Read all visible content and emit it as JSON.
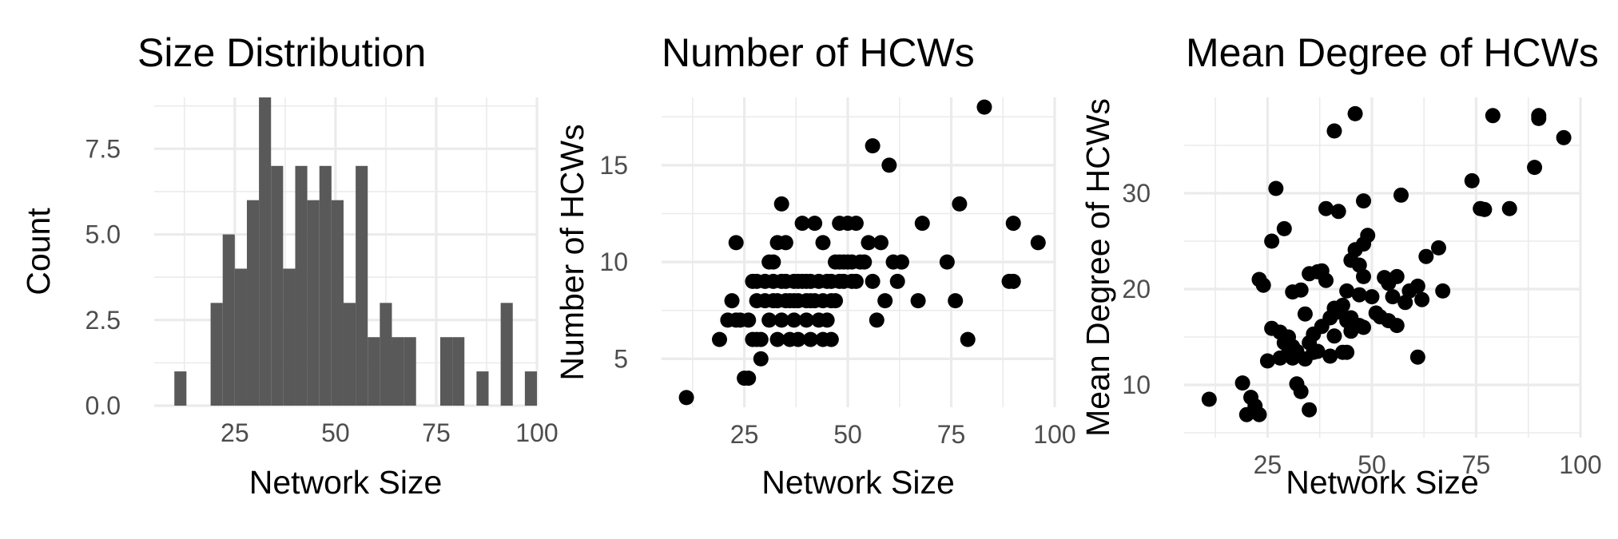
{
  "chart_data": [
    {
      "type": "bar",
      "title": "Size Distribution",
      "xlabel": "Network Size",
      "ylabel": "Count",
      "xlim": [
        5,
        100
      ],
      "ylim": [
        0,
        9
      ],
      "bin_width": 3,
      "xticks": [
        "25",
        "50",
        "75",
        "100"
      ],
      "yticks": [
        "0.0",
        "2.5",
        "5.0",
        "7.5"
      ],
      "bins": [
        {
          "x0": 10,
          "x1": 13,
          "count": 1
        },
        {
          "x0": 19,
          "x1": 22,
          "count": 3
        },
        {
          "x0": 22,
          "x1": 25,
          "count": 5
        },
        {
          "x0": 25,
          "x1": 28,
          "count": 4
        },
        {
          "x0": 28,
          "x1": 31,
          "count": 6
        },
        {
          "x0": 31,
          "x1": 34,
          "count": 9
        },
        {
          "x0": 34,
          "x1": 37,
          "count": 7
        },
        {
          "x0": 37,
          "x1": 40,
          "count": 4
        },
        {
          "x0": 40,
          "x1": 43,
          "count": 7
        },
        {
          "x0": 43,
          "x1": 46,
          "count": 6
        },
        {
          "x0": 46,
          "x1": 49,
          "count": 7
        },
        {
          "x0": 49,
          "x1": 52,
          "count": 6
        },
        {
          "x0": 52,
          "x1": 55,
          "count": 3
        },
        {
          "x0": 55,
          "x1": 58,
          "count": 7
        },
        {
          "x0": 58,
          "x1": 61,
          "count": 2
        },
        {
          "x0": 61,
          "x1": 64,
          "count": 3
        },
        {
          "x0": 64,
          "x1": 67,
          "count": 2
        },
        {
          "x0": 67,
          "x1": 70,
          "count": 2
        },
        {
          "x0": 76,
          "x1": 79,
          "count": 2
        },
        {
          "x0": 79,
          "x1": 82,
          "count": 2
        },
        {
          "x0": 85,
          "x1": 88,
          "count": 1
        },
        {
          "x0": 91,
          "x1": 94,
          "count": 3
        },
        {
          "x0": 97,
          "x1": 100,
          "count": 1
        }
      ]
    },
    {
      "type": "scatter",
      "title": "Number of HCWs",
      "xlabel": "Network Size",
      "ylabel": "Number of HCWs",
      "xlim": [
        5,
        100
      ],
      "ylim": [
        2.5,
        18.5
      ],
      "xticks": [
        "25",
        "50",
        "75",
        "100"
      ],
      "yticks": [
        "5",
        "10",
        "15"
      ],
      "x": [
        11,
        19,
        21,
        22,
        23,
        23,
        24,
        25,
        26,
        26,
        27,
        27,
        28,
        28,
        28,
        29,
        29,
        30,
        30,
        31,
        31,
        32,
        32,
        32,
        33,
        33,
        33,
        34,
        34,
        34,
        35,
        35,
        35,
        36,
        36,
        37,
        37,
        37,
        38,
        38,
        38,
        39,
        39,
        40,
        40,
        40,
        41,
        41,
        41,
        42,
        42,
        43,
        43,
        44,
        44,
        44,
        45,
        45,
        46,
        46,
        46,
        47,
        47,
        48,
        48,
        48,
        49,
        49,
        50,
        50,
        51,
        51,
        52,
        52,
        53,
        54,
        55,
        56,
        56,
        57,
        58,
        59,
        60,
        61,
        62,
        63,
        63,
        67,
        68,
        74,
        76,
        77,
        79,
        83,
        89,
        90,
        90,
        96
      ],
      "y": [
        3,
        6,
        7,
        8,
        7,
        11,
        7,
        4,
        7,
        4,
        6,
        9,
        6,
        8,
        9,
        5,
        6,
        9,
        8,
        7,
        10,
        10,
        9,
        8,
        11,
        6,
        8,
        9,
        7,
        13,
        8,
        11,
        9,
        6,
        8,
        9,
        7,
        8,
        9,
        6,
        8,
        9,
        12,
        7,
        8,
        9,
        8,
        9,
        6,
        12,
        8,
        9,
        7,
        11,
        8,
        6,
        9,
        7,
        9,
        6,
        8,
        10,
        8,
        10,
        9,
        12,
        10,
        9,
        12,
        10,
        9,
        10,
        12,
        9,
        10,
        10,
        11,
        16,
        9,
        7,
        11,
        8,
        15,
        10,
        9,
        10,
        10,
        8,
        12,
        10,
        8,
        13,
        6,
        18,
        9,
        9,
        12,
        11
      ]
    },
    {
      "type": "scatter",
      "title": "Mean Degree of HCWs",
      "xlabel": "Network Size",
      "ylabel": "Mean Degree of HCWs",
      "xlim": [
        5,
        100
      ],
      "ylim": [
        4.5,
        40
      ],
      "xticks": [
        "25",
        "50",
        "75",
        "100"
      ],
      "yticks": [
        "10",
        "20",
        "30"
      ],
      "x": [
        11,
        19,
        20,
        21,
        22,
        23,
        23,
        24,
        25,
        26,
        26,
        27,
        28,
        28,
        29,
        29,
        30,
        30,
        31,
        31,
        31,
        32,
        32,
        33,
        33,
        34,
        34,
        35,
        35,
        35,
        36,
        36,
        37,
        37,
        38,
        38,
        39,
        39,
        40,
        40,
        41,
        41,
        41,
        42,
        42,
        43,
        43,
        44,
        44,
        44,
        45,
        45,
        45,
        46,
        46,
        47,
        47,
        47,
        48,
        48,
        48,
        48,
        49,
        50,
        51,
        52,
        53,
        54,
        54,
        55,
        56,
        56,
        57,
        58,
        59,
        61,
        61,
        62,
        63,
        66,
        67,
        74,
        76,
        77,
        79,
        83,
        89,
        90,
        90,
        96
      ],
      "y": [
        8.5,
        10.2,
        6.9,
        8.7,
        7.8,
        6.9,
        21,
        20.4,
        12.5,
        25,
        15.9,
        30.5,
        12.8,
        15.5,
        14.4,
        26.3,
        13.3,
        15,
        14,
        12.8,
        19.7,
        10.1,
        13.5,
        19.9,
        9.3,
        17.4,
        12.7,
        7.4,
        14.4,
        21.6,
        13.4,
        15.3,
        21.8,
        13.5,
        21.9,
        16.1,
        28.4,
        20.9,
        13,
        17,
        36.5,
        18,
        15.1,
        28.1,
        17.6,
        13.4,
        18.3,
        16.7,
        19.8,
        13.4,
        23,
        17,
        15.6,
        24.1,
        38.3,
        16.2,
        19.4,
        22.5,
        21.3,
        16,
        29.2,
        24.7,
        25.6,
        19.2,
        17.5,
        17.1,
        21.2,
        16.7,
        20.6,
        19.2,
        16.2,
        21.3,
        29.8,
        18.6,
        19.8,
        20.3,
        12.9,
        18.9,
        23.4,
        24.3,
        19.8,
        31.3,
        28.4,
        28.3,
        38.1,
        28.4,
        32.7,
        38.1,
        37.8,
        35.8
      ]
    }
  ]
}
